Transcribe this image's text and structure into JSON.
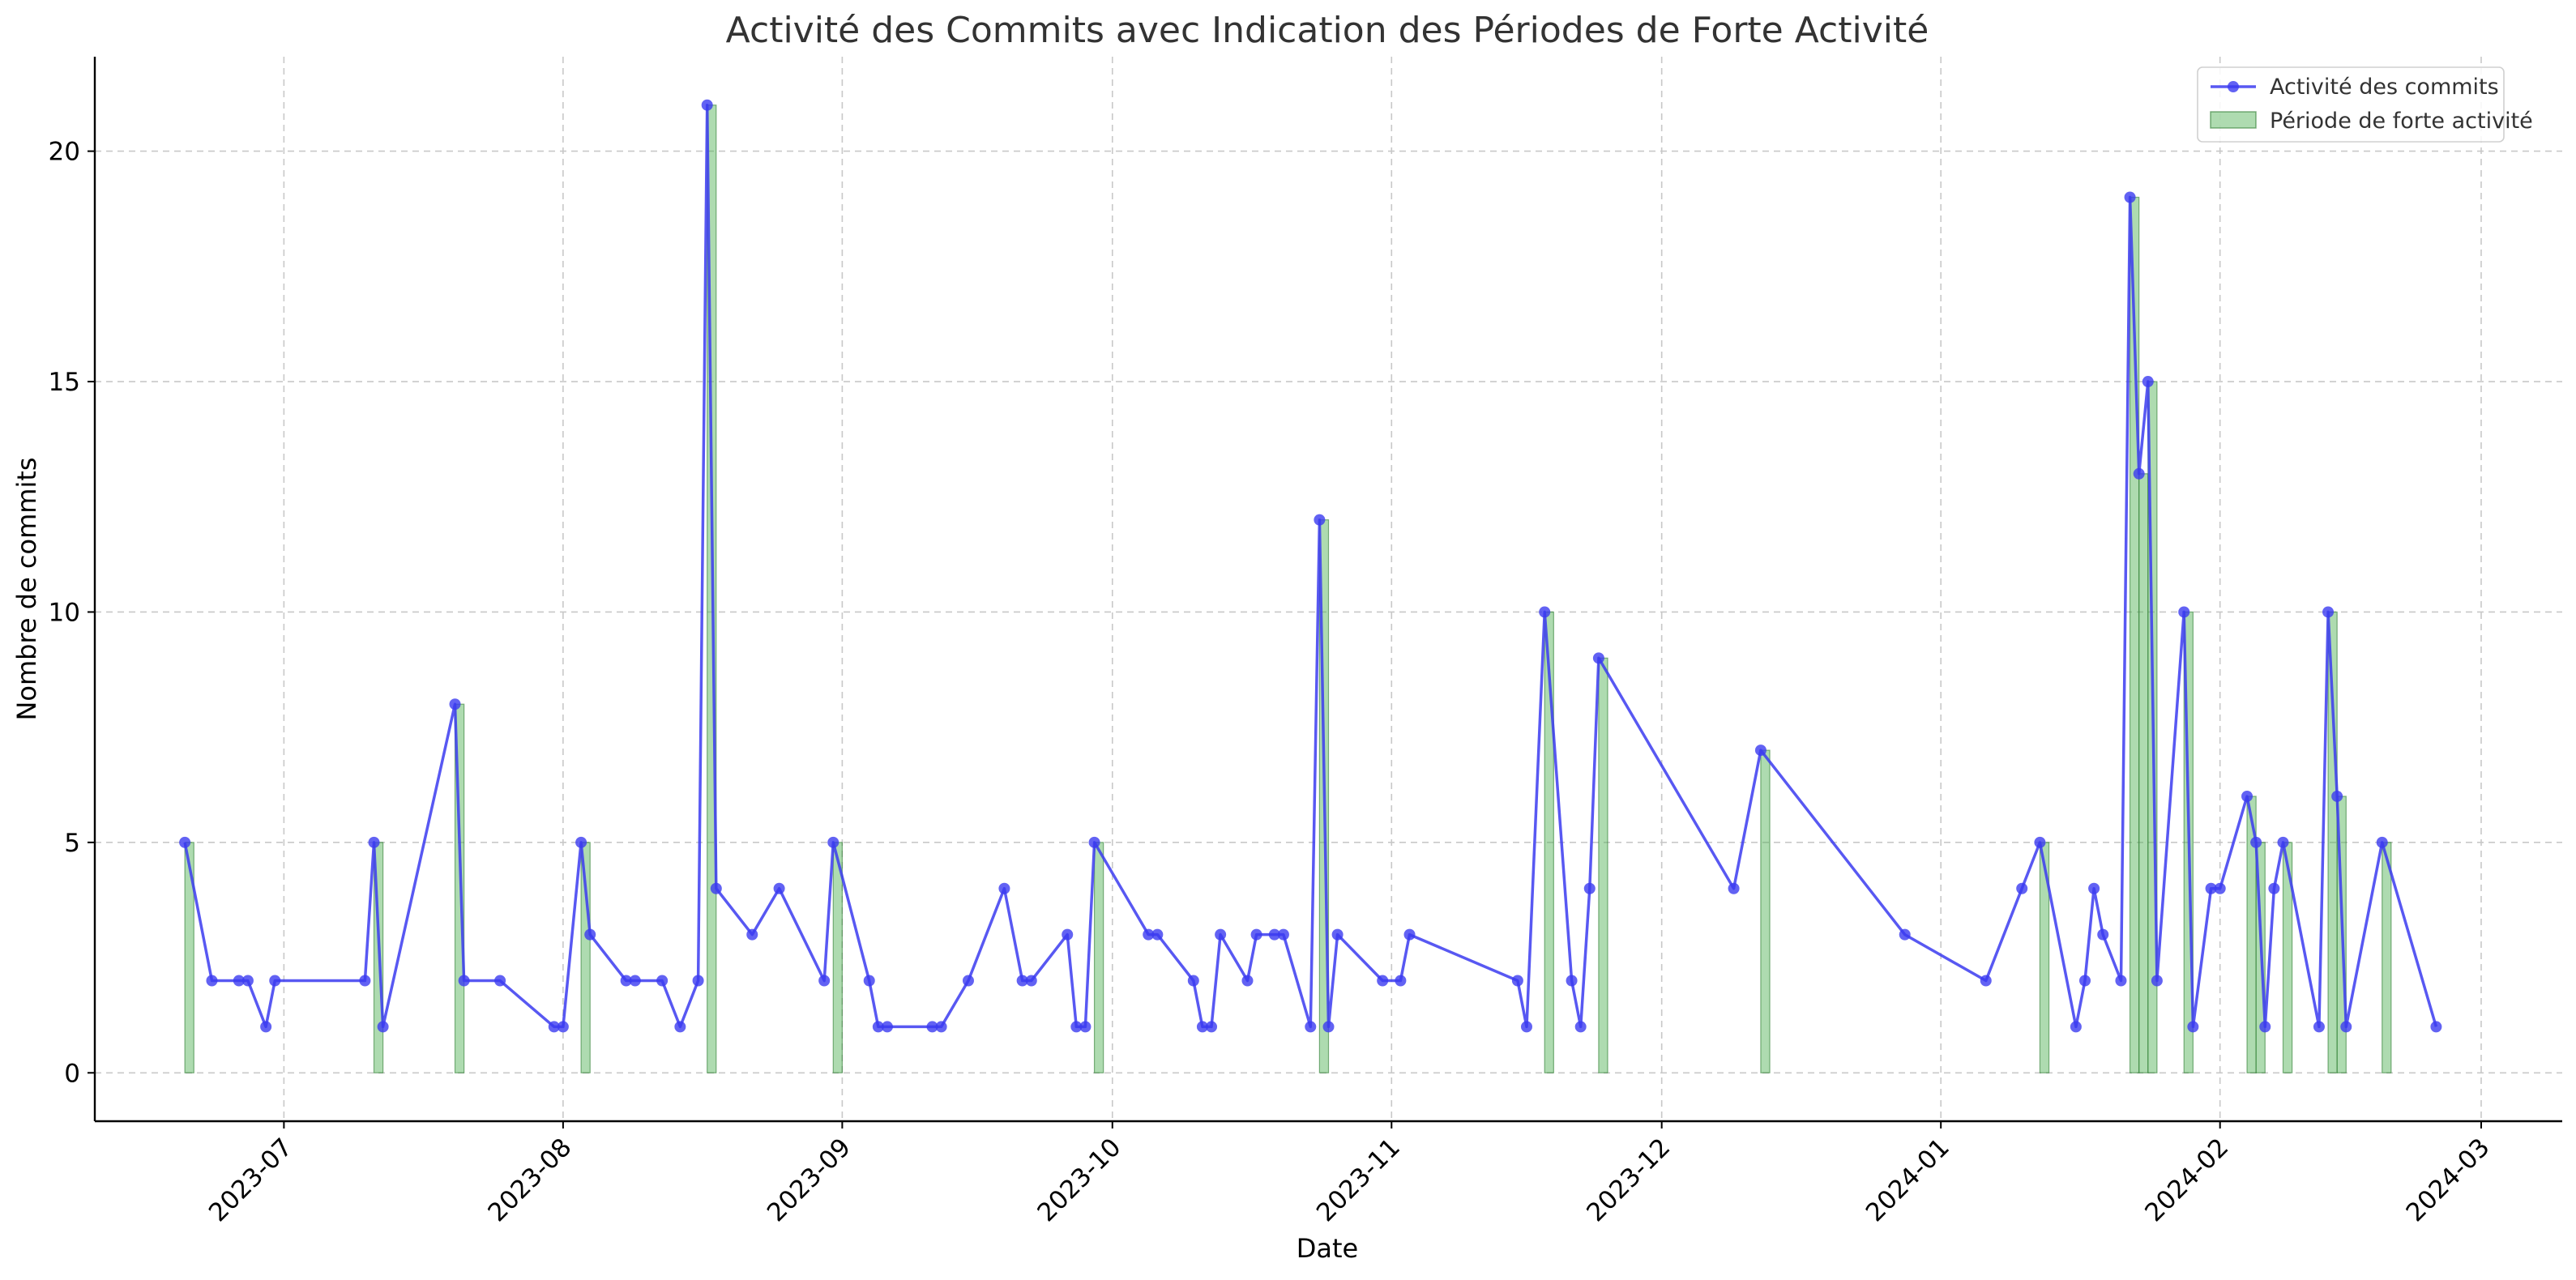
{
  "chart_data": {
    "type": "line",
    "title": "Activité des Commits avec Indication des Périodes de Forte Activité",
    "xlabel": "Date",
    "ylabel": "Nombre de commits",
    "x_axis": {
      "type": "date",
      "range": [
        "2023-06-10",
        "2024-03-10"
      ],
      "ticks": [
        "2023-07-01",
        "2023-08-01",
        "2023-09-01",
        "2023-10-01",
        "2023-11-01",
        "2023-12-01",
        "2024-01-01",
        "2024-02-01",
        "2024-03-01"
      ],
      "tick_labels": [
        "2023-07",
        "2023-08",
        "2023-09",
        "2023-10",
        "2023-11",
        "2023-12",
        "2024-01",
        "2024-02",
        "2024-03"
      ]
    },
    "y_axis": {
      "range": [
        -1.05,
        22.05
      ],
      "ticks": [
        0,
        5,
        10,
        15,
        20
      ],
      "tick_labels": [
        "0",
        "5",
        "10",
        "15",
        "20"
      ]
    },
    "grid": true,
    "legend": {
      "position": "top-right",
      "entries": [
        "Activité des commits",
        "Période de forte activité"
      ]
    },
    "series": [
      {
        "name": "Activité des commits",
        "kind": "line-with-markers",
        "color": "#3b3bf0",
        "points": [
          [
            "2023-06-20",
            5
          ],
          [
            "2023-06-23",
            2
          ],
          [
            "2023-06-26",
            2
          ],
          [
            "2023-06-27",
            2
          ],
          [
            "2023-06-29",
            1
          ],
          [
            "2023-06-30",
            2
          ],
          [
            "2023-07-10",
            2
          ],
          [
            "2023-07-11",
            5
          ],
          [
            "2023-07-12",
            1
          ],
          [
            "2023-07-20",
            8
          ],
          [
            "2023-07-21",
            2
          ],
          [
            "2023-07-25",
            2
          ],
          [
            "2023-07-31",
            1
          ],
          [
            "2023-08-01",
            1
          ],
          [
            "2023-08-03",
            5
          ],
          [
            "2023-08-04",
            3
          ],
          [
            "2023-08-08",
            2
          ],
          [
            "2023-08-09",
            2
          ],
          [
            "2023-08-12",
            2
          ],
          [
            "2023-08-14",
            1
          ],
          [
            "2023-08-16",
            2
          ],
          [
            "2023-08-17",
            21
          ],
          [
            "2023-08-18",
            4
          ],
          [
            "2023-08-22",
            3
          ],
          [
            "2023-08-25",
            4
          ],
          [
            "2023-08-30",
            2
          ],
          [
            "2023-08-31",
            5
          ],
          [
            "2023-09-04",
            2
          ],
          [
            "2023-09-05",
            1
          ],
          [
            "2023-09-06",
            1
          ],
          [
            "2023-09-11",
            1
          ],
          [
            "2023-09-12",
            1
          ],
          [
            "2023-09-15",
            2
          ],
          [
            "2023-09-19",
            4
          ],
          [
            "2023-09-21",
            2
          ],
          [
            "2023-09-22",
            2
          ],
          [
            "2023-09-26",
            3
          ],
          [
            "2023-09-27",
            1
          ],
          [
            "2023-09-28",
            1
          ],
          [
            "2023-09-29",
            5
          ],
          [
            "2023-10-05",
            3
          ],
          [
            "2023-10-06",
            3
          ],
          [
            "2023-10-10",
            2
          ],
          [
            "2023-10-11",
            1
          ],
          [
            "2023-10-12",
            1
          ],
          [
            "2023-10-13",
            3
          ],
          [
            "2023-10-16",
            2
          ],
          [
            "2023-10-17",
            3
          ],
          [
            "2023-10-19",
            3
          ],
          [
            "2023-10-20",
            3
          ],
          [
            "2023-10-23",
            1
          ],
          [
            "2023-10-24",
            12
          ],
          [
            "2023-10-25",
            1
          ],
          [
            "2023-10-26",
            3
          ],
          [
            "2023-10-31",
            2
          ],
          [
            "2023-11-02",
            2
          ],
          [
            "2023-11-03",
            3
          ],
          [
            "2023-11-15",
            2
          ],
          [
            "2023-11-16",
            1
          ],
          [
            "2023-11-18",
            10
          ],
          [
            "2023-11-21",
            2
          ],
          [
            "2023-11-22",
            1
          ],
          [
            "2023-11-23",
            4
          ],
          [
            "2023-11-24",
            9
          ],
          [
            "2023-12-09",
            4
          ],
          [
            "2023-12-12",
            7
          ],
          [
            "2023-12-28",
            3
          ],
          [
            "2024-01-06",
            2
          ],
          [
            "2024-01-10",
            4
          ],
          [
            "2024-01-12",
            5
          ],
          [
            "2024-01-16",
            1
          ],
          [
            "2024-01-17",
            2
          ],
          [
            "2024-01-18",
            4
          ],
          [
            "2024-01-19",
            3
          ],
          [
            "2024-01-21",
            2
          ],
          [
            "2024-01-22",
            19
          ],
          [
            "2024-01-23",
            13
          ],
          [
            "2024-01-24",
            15
          ],
          [
            "2024-01-25",
            2
          ],
          [
            "2024-01-28",
            10
          ],
          [
            "2024-01-29",
            1
          ],
          [
            "2024-01-31",
            4
          ],
          [
            "2024-02-01",
            4
          ],
          [
            "2024-02-04",
            6
          ],
          [
            "2024-02-05",
            5
          ],
          [
            "2024-02-06",
            1
          ],
          [
            "2024-02-07",
            4
          ],
          [
            "2024-02-08",
            5
          ],
          [
            "2024-02-12",
            1
          ],
          [
            "2024-02-13",
            10
          ],
          [
            "2024-02-14",
            6
          ],
          [
            "2024-02-15",
            1
          ],
          [
            "2024-02-19",
            5
          ],
          [
            "2024-02-25",
            1
          ]
        ]
      },
      {
        "name": "Période de forte activité",
        "kind": "bar",
        "color": "#4caf50",
        "points": [
          [
            "2023-06-20",
            5
          ],
          [
            "2023-07-11",
            5
          ],
          [
            "2023-07-20",
            8
          ],
          [
            "2023-08-03",
            5
          ],
          [
            "2023-08-17",
            21
          ],
          [
            "2023-08-31",
            5
          ],
          [
            "2023-09-29",
            5
          ],
          [
            "2023-10-24",
            12
          ],
          [
            "2023-11-18",
            10
          ],
          [
            "2023-11-24",
            9
          ],
          [
            "2023-12-12",
            7
          ],
          [
            "2024-01-12",
            5
          ],
          [
            "2024-01-22",
            19
          ],
          [
            "2024-01-23",
            13
          ],
          [
            "2024-01-24",
            15
          ],
          [
            "2024-01-28",
            10
          ],
          [
            "2024-02-04",
            6
          ],
          [
            "2024-02-05",
            5
          ],
          [
            "2024-02-08",
            5
          ],
          [
            "2024-02-13",
            10
          ],
          [
            "2024-02-14",
            6
          ],
          [
            "2024-02-19",
            5
          ]
        ]
      }
    ]
  }
}
